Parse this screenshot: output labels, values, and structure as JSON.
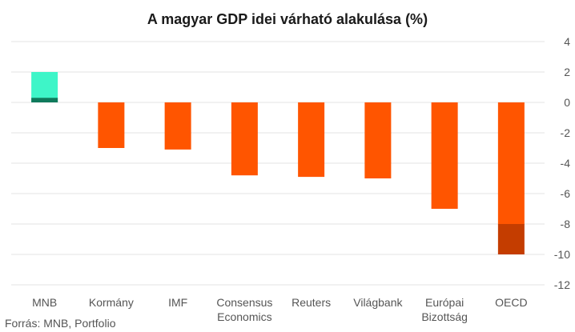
{
  "chart_data": {
    "type": "bar",
    "title": "A magyar GDP idei várható alakulása (%)",
    "categories": [
      [
        "MNB"
      ],
      [
        "Kormány"
      ],
      [
        "IMF"
      ],
      [
        "Consensus",
        "Economics"
      ],
      [
        "Reuters"
      ],
      [
        "Világbank"
      ],
      [
        "Európai",
        "Bizottság"
      ],
      [
        "OECD"
      ]
    ],
    "series": [
      {
        "values": [
          2.0,
          -3.0,
          -3.1,
          -4.8,
          -4.9,
          -5.0,
          -7.0,
          -8.0
        ]
      },
      {
        "values": [
          0.3,
          null,
          null,
          null,
          null,
          null,
          null,
          -10.0
        ]
      }
    ],
    "ylim": [
      -12,
      4
    ],
    "yticks": [
      4,
      2,
      0,
      -2,
      -4,
      -6,
      -8,
      -10,
      -12
    ],
    "y_axis_position": "right",
    "grid": true,
    "legend": "none",
    "colors": {
      "range_upper_positive": "#3ef5c8",
      "range_lower_positive": "#0f7a5c",
      "negative": "#ff5500",
      "range_lower_negative": "#c43d00",
      "grid": "#e3e3e3"
    }
  },
  "source_text": "Forrás: MNB, Portfolio"
}
